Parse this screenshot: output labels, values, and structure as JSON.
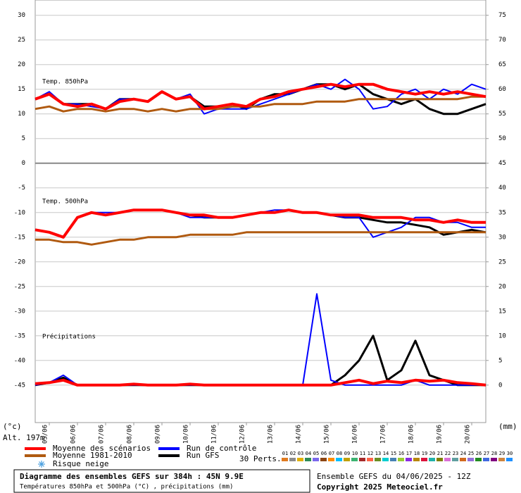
{
  "chart_data": [
    {
      "type": "line",
      "title": "Temp. 850hPa",
      "x": [
        0,
        12,
        24,
        36,
        48,
        60,
        72,
        84,
        96,
        108,
        120,
        132,
        144,
        156,
        168,
        180,
        192,
        204,
        216,
        228,
        240,
        252,
        264,
        276,
        288,
        300,
        312,
        324,
        336,
        348,
        360,
        372,
        384
      ],
      "xlim": [
        0,
        384
      ],
      "xticks": [
        {
          "value": 12,
          "label": "05/06"
        },
        {
          "value": 36,
          "label": "06/06"
        },
        {
          "value": 60,
          "label": "07/06"
        },
        {
          "value": 84,
          "label": "08/06"
        },
        {
          "value": 108,
          "label": "09/06"
        },
        {
          "value": 132,
          "label": "10/06"
        },
        {
          "value": 156,
          "label": "11/06"
        },
        {
          "value": 180,
          "label": "12/06"
        },
        {
          "value": 204,
          "label": "13/06"
        },
        {
          "value": 228,
          "label": "14/06"
        },
        {
          "value": 252,
          "label": "15/06"
        },
        {
          "value": 276,
          "label": "16/06"
        },
        {
          "value": 300,
          "label": "17/06"
        },
        {
          "value": 324,
          "label": "18/06"
        },
        {
          "value": 348,
          "label": "19/06"
        },
        {
          "value": 372,
          "label": "20/06"
        }
      ],
      "ylim": [
        -52.6,
        33.1
      ],
      "yticks": [
        30,
        25,
        20,
        15,
        10,
        5,
        0,
        -5,
        -10,
        -15,
        -20,
        -25,
        -30,
        -35,
        -40,
        -45
      ],
      "y2lim": [
        -7.6,
        78.1
      ],
      "y2ticks": [
        75,
        70,
        65,
        60,
        55,
        50,
        45,
        40,
        35,
        30,
        25,
        20,
        15,
        10,
        5,
        0
      ],
      "y_label": "(°c)",
      "y2_label": "(mm)",
      "grid": true,
      "series": [
        {
          "name": "Moyenne des scénarios",
          "color": "#ff0000",
          "values": [
            13,
            14,
            12,
            11.5,
            12,
            11,
            12.5,
            13,
            12.5,
            14.5,
            13,
            13.5,
            11,
            11.5,
            12,
            11.5,
            13,
            13.5,
            14.5,
            15,
            15.5,
            16,
            15.5,
            16,
            16,
            15,
            14.5,
            14,
            14.5,
            14,
            14.5,
            14,
            13.5
          ]
        },
        {
          "name": "Moyenne 1981-2010",
          "color": "#b05a10",
          "values": [
            11,
            11.5,
            10.5,
            11,
            11,
            10.5,
            11,
            11,
            10.5,
            11,
            10.5,
            11,
            11,
            11,
            11.5,
            11.5,
            11.5,
            12,
            12,
            12,
            12.5,
            12.5,
            12.5,
            13,
            13,
            13,
            13,
            13,
            13,
            13,
            13,
            13.5,
            13.5
          ]
        },
        {
          "name": "Run de contrôle",
          "color": "#0000ff",
          "values": [
            13,
            14.5,
            12,
            12,
            11.5,
            11,
            13,
            13,
            12.5,
            14.5,
            13,
            14,
            10,
            11,
            11,
            11,
            12,
            13,
            14,
            15,
            16,
            15,
            17,
            15,
            11,
            11.5,
            14,
            15,
            13,
            15,
            14,
            16,
            15
          ]
        },
        {
          "name": "Run GFS",
          "color": "#000000",
          "values": [
            13,
            14,
            12,
            12,
            12,
            11,
            13,
            13,
            12.5,
            14.5,
            13,
            13.5,
            11.5,
            11.5,
            12,
            11,
            13,
            14,
            14,
            15,
            16,
            16,
            15,
            16,
            14,
            13,
            12,
            13,
            11,
            10,
            10,
            11,
            12
          ]
        }
      ]
    },
    {
      "type": "line",
      "title": "Temp. 500hPa",
      "series": [
        {
          "color": "#ff0000",
          "values": [
            -13.5,
            -14,
            -15,
            -11,
            -10,
            -10.5,
            -10,
            -9.5,
            -9.5,
            -9.5,
            -10,
            -10.5,
            -10.5,
            -11,
            -11,
            -10.5,
            -10,
            -10,
            -9.5,
            -10,
            -10,
            -10.5,
            -10.5,
            -10.5,
            -11,
            -11,
            -11,
            -11.5,
            -11.5,
            -12,
            -11.5,
            -12,
            -12
          ]
        },
        {
          "color": "#b05a10",
          "values": [
            -15.5,
            -15.5,
            -16,
            -16,
            -16.5,
            -16,
            -15.5,
            -15.5,
            -15,
            -15,
            -15,
            -14.5,
            -14.5,
            -14.5,
            -14.5,
            -14,
            -14,
            -14,
            -14,
            -14,
            -14,
            -14,
            -14,
            -14,
            -14,
            -14,
            -14,
            -14,
            -14,
            -14,
            -14,
            -14,
            -14
          ]
        },
        {
          "color": "#0000ff",
          "values": [
            -13.5,
            -14,
            -15,
            -11,
            -10,
            -10,
            -10,
            -9.5,
            -9.5,
            -9.5,
            -10,
            -11,
            -11,
            -11,
            -11,
            -10.5,
            -10,
            -9.5,
            -9.5,
            -10,
            -10,
            -10.5,
            -11,
            -11,
            -15,
            -14,
            -13,
            -11,
            -11,
            -12,
            -12,
            -13,
            -13
          ]
        },
        {
          "color": "#000000",
          "values": [
            -13.5,
            -14,
            -15,
            -11,
            -10,
            -10.5,
            -10,
            -9.5,
            -9.5,
            -9.5,
            -10,
            -10.5,
            -11,
            -11,
            -11,
            -10.5,
            -10,
            -10,
            -9.5,
            -10,
            -10,
            -10.5,
            -11,
            -11,
            -11.5,
            -12,
            -12,
            -12.5,
            -13,
            -14.5,
            -14,
            -13.5,
            -14
          ]
        }
      ]
    },
    {
      "type": "line",
      "title": "Précipitations",
      "series": [
        {
          "color": "#ff0000",
          "axis": "y2",
          "values": [
            0.3,
            0.5,
            1,
            0,
            0,
            0,
            0,
            0.2,
            0,
            0,
            0,
            0.2,
            0,
            0,
            0,
            0,
            0,
            0,
            0,
            0,
            0,
            0,
            0.5,
            1,
            0.3,
            0.8,
            0.5,
            1,
            0.8,
            1,
            0.5,
            0.3,
            0
          ]
        },
        {
          "color": "#0000ff",
          "axis": "y2",
          "values": [
            0,
            0.5,
            2,
            0,
            0,
            0,
            0,
            0,
            0,
            0,
            0,
            0,
            0,
            0,
            0,
            0,
            0,
            0,
            0,
            0,
            18.5,
            1,
            0,
            0,
            0,
            0,
            0,
            1,
            0,
            0,
            0,
            0,
            0
          ]
        },
        {
          "color": "#000000",
          "axis": "y2",
          "values": [
            0,
            0.5,
            1.5,
            0,
            0,
            0,
            0,
            0,
            0,
            0,
            0,
            0,
            0,
            0,
            0,
            0,
            0,
            0,
            0,
            0,
            0,
            0,
            2,
            5,
            10,
            1,
            3,
            9,
            2,
            1,
            0,
            0,
            0
          ]
        }
      ]
    }
  ],
  "altitude": "Alt. 197m",
  "snow_legend": "Risque neige",
  "perturbations": {
    "label": "30 Perts.",
    "items": [
      {
        "label": "01",
        "color": "#e07b20"
      },
      {
        "label": "02",
        "color": "#8c8c8c"
      },
      {
        "label": "03",
        "color": "#e0b000"
      },
      {
        "label": "04",
        "color": "#2e8b57"
      },
      {
        "label": "05",
        "color": "#7b68ee"
      },
      {
        "label": "06",
        "color": "#8b4513"
      },
      {
        "label": "07",
        "color": "#ff8c00"
      },
      {
        "label": "08",
        "color": "#00bfff"
      },
      {
        "label": "09",
        "color": "#c0a000"
      },
      {
        "label": "10",
        "color": "#3cb371"
      },
      {
        "label": "11",
        "color": "#a52a2a"
      },
      {
        "label": "12",
        "color": "#ff6347"
      },
      {
        "label": "13",
        "color": "#6b8e23"
      },
      {
        "label": "14",
        "color": "#00ced1"
      },
      {
        "label": "15",
        "color": "#4682b4"
      },
      {
        "label": "16",
        "color": "#9acd32"
      },
      {
        "label": "17",
        "color": "#8a2be2"
      },
      {
        "label": "18",
        "color": "#b8860b"
      },
      {
        "label": "19",
        "color": "#dc143c"
      },
      {
        "label": "20",
        "color": "#20b2aa"
      },
      {
        "label": "21",
        "color": "#808000"
      },
      {
        "label": "22",
        "color": "#da70d6"
      },
      {
        "label": "23",
        "color": "#5f9ea0"
      },
      {
        "label": "24",
        "color": "#d2691e"
      },
      {
        "label": "25",
        "color": "#9370db"
      },
      {
        "label": "26",
        "color": "#228b22"
      },
      {
        "label": "27",
        "color": "#4169e1"
      },
      {
        "label": "28",
        "color": "#800080"
      },
      {
        "label": "29",
        "color": "#cd853f"
      },
      {
        "label": "30",
        "color": "#1e90ff"
      }
    ]
  },
  "footer": {
    "title": "Diagramme des ensembles GEFS sur 384h : 45N 9.9E",
    "subtitle": "Températures 850hPa et 500hPa (°C) , précipitations (mm)",
    "run": "Ensemble GEFS du 04/06/2025 - 12Z",
    "copyright": "Copyright 2025 Meteociel.fr"
  }
}
